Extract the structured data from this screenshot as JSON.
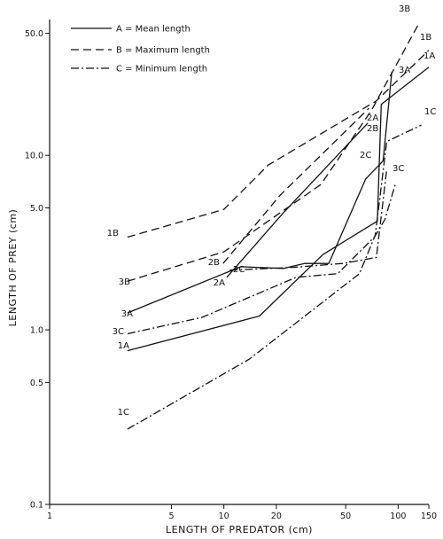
{
  "chart_data": {
    "type": "line",
    "xlabel": "LENGTH OF PREDATOR (cm)",
    "ylabel": "LENGTH OF PREY (cm)",
    "xscale": "log",
    "yscale": "log",
    "xlim": [
      1,
      150
    ],
    "ylim": [
      0.1,
      60
    ],
    "xticks": [
      1,
      5,
      10,
      20,
      50,
      100,
      150
    ],
    "xtick_labels": [
      "1",
      "5",
      "10",
      "20",
      "50",
      "100",
      "150"
    ],
    "yticks": [
      0.1,
      0.5,
      1.0,
      5.0,
      10.0,
      50.0
    ],
    "ytick_labels": [
      "0.1",
      "0.5",
      "1.0",
      "5.0",
      "10.0",
      "50.0"
    ],
    "grid": false,
    "legend": {
      "position": "top-left",
      "entries": [
        {
          "code": "A",
          "text": "A = Mean length",
          "dash": "solid"
        },
        {
          "code": "B",
          "text": "B = Maximum length",
          "dash": "dashed"
        },
        {
          "code": "C",
          "text": "C = Minimum length",
          "dash": "dashdot"
        }
      ]
    },
    "series": [
      {
        "id": "1B",
        "dash": "dashed",
        "x": [
          2.8,
          10,
          18,
          75,
          150
        ],
        "y": [
          3.4,
          4.9,
          8.8,
          20.5,
          40
        ]
      },
      {
        "id": "1A",
        "dash": "solid",
        "x": [
          2.8,
          16,
          37,
          76,
          80,
          150
        ],
        "y": [
          0.76,
          1.2,
          2.7,
          4.2,
          19.6,
          32
        ]
      },
      {
        "id": "1C",
        "dash": "dashdot",
        "x": [
          2.8,
          14,
          60,
          74,
          86,
          136
        ],
        "y": [
          0.27,
          0.68,
          2.1,
          3.5,
          12,
          14.9
        ]
      },
      {
        "id": "2B",
        "dash": "dashed",
        "x": [
          9.9,
          21,
          68
        ],
        "y": [
          2.4,
          5.9,
          18.6
        ]
      },
      {
        "id": "2A",
        "dash": "solid",
        "x": [
          10.4,
          22,
          67
        ],
        "y": [
          2.0,
          4.7,
          15.3
        ]
      },
      {
        "id": "2C",
        "dash": "dashdot",
        "x": [
          10.8,
          25,
          48,
          75,
          86
        ],
        "y": [
          2.2,
          2.28,
          2.4,
          2.6,
          8.3
        ]
      },
      {
        "id": "3B",
        "dash": "dashed",
        "x": [
          2.8,
          10,
          36,
          70,
          133
        ],
        "y": [
          1.9,
          2.8,
          6.8,
          18,
          58
        ]
      },
      {
        "id": "3A",
        "dash": "solid",
        "x": [
          2.8,
          12.5,
          22,
          29,
          40,
          65,
          82,
          92
        ],
        "y": [
          1.25,
          2.3,
          2.25,
          2.4,
          2.4,
          7.3,
          9.3,
          30
        ]
      },
      {
        "id": "3C",
        "dash": "dashdot",
        "x": [
          2.8,
          7.5,
          26,
          45,
          73,
          84,
          97
        ],
        "y": [
          0.95,
          1.18,
          2.0,
          2.1,
          3.4,
          4.3,
          7.0
        ]
      }
    ],
    "annotations": [
      "1B",
      "3B",
      "3A",
      "3C",
      "1A",
      "1C",
      "2B",
      "2A",
      "2C",
      "2B",
      "2A",
      "2C",
      "3B",
      "1B",
      "1A",
      "3A",
      "1C",
      "3C"
    ]
  }
}
